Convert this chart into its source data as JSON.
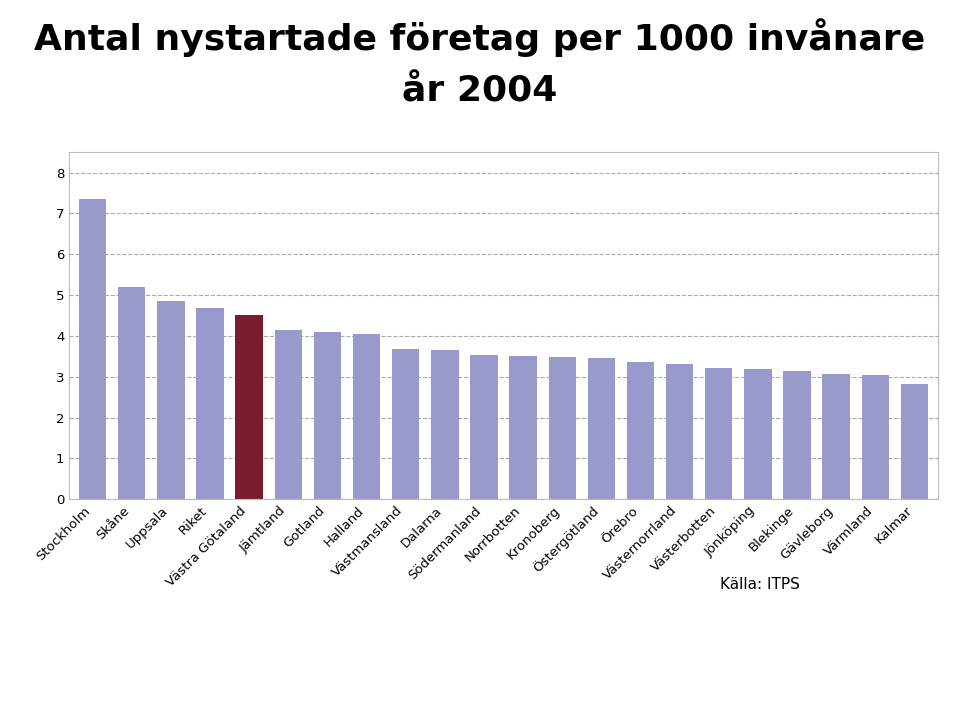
{
  "title_line1": "Antal nystartade företag per 1000 invånare",
  "title_line2": "år 2004",
  "categories": [
    "Stockholm",
    "Skåne",
    "Uppsala",
    "Riket",
    "Västra Götaland",
    "Jämtland",
    "Gotland",
    "Halland",
    "Västmansland",
    "Dalarna",
    "Södermanland",
    "Norrbotten",
    "Kronoberg",
    "Östergötland",
    "Örebro",
    "Västernorrland",
    "Västerbotten",
    "Jönköping",
    "Blekinge",
    "Gävleborg",
    "Värmland",
    "Kalmar"
  ],
  "values": [
    7.35,
    5.2,
    4.85,
    4.68,
    4.5,
    4.15,
    4.1,
    4.05,
    3.68,
    3.65,
    3.52,
    3.5,
    3.48,
    3.45,
    3.35,
    3.3,
    3.22,
    3.18,
    3.14,
    3.07,
    3.05,
    2.82
  ],
  "bar_colors": [
    "#9999cc",
    "#9999cc",
    "#9999cc",
    "#9999cc",
    "#7b1c2e",
    "#9999cc",
    "#9999cc",
    "#9999cc",
    "#9999cc",
    "#9999cc",
    "#9999cc",
    "#9999cc",
    "#9999cc",
    "#9999cc",
    "#9999cc",
    "#9999cc",
    "#9999cc",
    "#9999cc",
    "#9999cc",
    "#9999cc",
    "#9999cc",
    "#9999cc"
  ],
  "ylim": [
    0,
    8.5
  ],
  "yticks": [
    0,
    1,
    2,
    3,
    4,
    5,
    6,
    7,
    8
  ],
  "source_text": "Källa: ITPS",
  "background_color": "#ffffff",
  "plot_bg_color": "#ffffff",
  "grid_color": "#aaaaaa",
  "border_color": "#bbbbbb",
  "title_fontsize": 26,
  "tick_fontsize": 9.5,
  "source_fontsize": 11
}
